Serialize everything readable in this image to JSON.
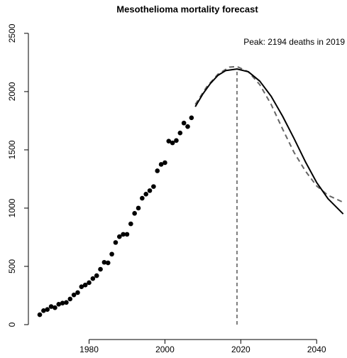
{
  "chart_data": {
    "type": "line",
    "title": "Mesothelioma mortality forecast",
    "annotation": "Peak: 2194 deaths in 2019",
    "peak": {
      "x": 2019,
      "value": 2194
    },
    "xlim": [
      1964,
      2048
    ],
    "ylim": [
      -128,
      2652
    ],
    "xticks": [
      1980,
      2000,
      2020,
      2040
    ],
    "yticks": [
      0,
      500,
      1000,
      1500,
      2000,
      2500
    ],
    "series": [
      {
        "style": "points",
        "color": "#000000",
        "x": [
          1967,
          1968,
          1969,
          1970,
          1971,
          1972,
          1973,
          1974,
          1975,
          1976,
          1977,
          1978,
          1979,
          1980,
          1981,
          1982,
          1983,
          1984,
          1985,
          1986,
          1987,
          1988,
          1989,
          1990,
          1991,
          1992,
          1993,
          1994,
          1995,
          1996,
          1997,
          1998,
          1999,
          2000,
          2001,
          2002,
          2003,
          2004,
          2005,
          2006,
          2007
        ],
        "values": [
          85,
          120,
          130,
          155,
          145,
          175,
          185,
          190,
          220,
          255,
          275,
          325,
          340,
          360,
          395,
          420,
          475,
          535,
          530,
          605,
          705,
          755,
          775,
          775,
          865,
          955,
          1000,
          1085,
          1120,
          1150,
          1185,
          1320,
          1375,
          1390,
          1575,
          1560,
          1580,
          1645,
          1730,
          1700,
          1775
        ]
      },
      {
        "style": "dashed",
        "color": "#666666",
        "x": [
          2008,
          2011,
          2014,
          2017,
          2019,
          2022,
          2025,
          2028,
          2031,
          2034,
          2037,
          2040,
          2043,
          2047
        ],
        "values": [
          1890,
          2040,
          2150,
          2210,
          2215,
          2170,
          2060,
          1890,
          1680,
          1480,
          1320,
          1190,
          1110,
          1050
        ]
      },
      {
        "style": "solid",
        "color": "#000000",
        "x": [
          2008,
          2010,
          2012,
          2014,
          2016,
          2019,
          2022,
          2025,
          2028,
          2031,
          2034,
          2037,
          2040,
          2043,
          2047
        ],
        "values": [
          1870,
          1980,
          2070,
          2140,
          2180,
          2194,
          2170,
          2090,
          1960,
          1790,
          1600,
          1400,
          1220,
          1080,
          950
        ]
      }
    ]
  }
}
